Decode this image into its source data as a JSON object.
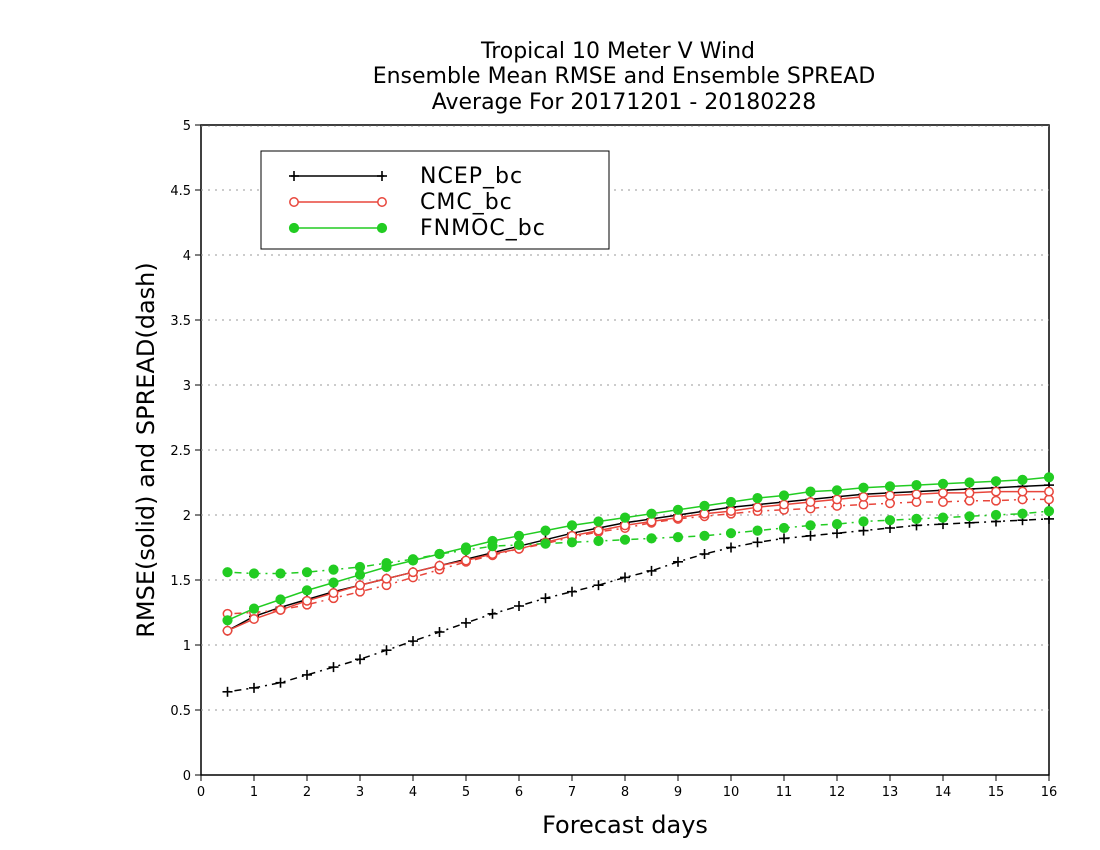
{
  "chart_data": {
    "type": "line",
    "title_lines": [
      "Tropical 10 Meter V Wind",
      "Ensemble Mean RMSE and Ensemble SPREAD",
      "Average For 20171201 - 20180228"
    ],
    "xlabel": "Forecast days",
    "ylabel": "RMSE(solid) and SPREAD(dash)",
    "xlim": [
      0,
      16
    ],
    "ylim": [
      0,
      5
    ],
    "x_ticks": [
      "0",
      "1",
      "2",
      "3",
      "4",
      "5",
      "6",
      "7",
      "8",
      "9",
      "10",
      "11",
      "12",
      "13",
      "14",
      "15",
      "16"
    ],
    "y_ticks": [
      "0",
      "0.5",
      "1",
      "1.5",
      "2",
      "2.5",
      "3",
      "3.5",
      "4",
      "4.5",
      "5"
    ],
    "grid": "horizontal dotted",
    "legend_position": "top-left",
    "x": [
      0.5,
      1,
      1.5,
      2,
      2.5,
      3,
      3.5,
      4,
      4.5,
      5,
      5.5,
      6,
      6.5,
      7,
      7.5,
      8,
      8.5,
      9,
      9.5,
      10,
      10.5,
      11,
      11.5,
      12,
      12.5,
      13,
      13.5,
      14,
      14.5,
      15,
      15.5,
      16
    ],
    "series": [
      {
        "name": "NCEP_bc",
        "color": "#000000",
        "marker": "plus",
        "rmse": [
          1.11,
          1.22,
          1.29,
          1.35,
          1.41,
          1.46,
          1.51,
          1.56,
          1.61,
          1.66,
          1.71,
          1.76,
          1.81,
          1.86,
          1.9,
          1.94,
          1.97,
          2.0,
          2.03,
          2.06,
          2.08,
          2.1,
          2.12,
          2.14,
          2.16,
          2.17,
          2.18,
          2.19,
          2.2,
          2.21,
          2.22,
          2.23
        ],
        "spread": [
          0.64,
          0.67,
          0.71,
          0.77,
          0.83,
          0.89,
          0.96,
          1.03,
          1.1,
          1.17,
          1.24,
          1.3,
          1.36,
          1.41,
          1.46,
          1.52,
          1.57,
          1.64,
          1.7,
          1.75,
          1.79,
          1.82,
          1.84,
          1.86,
          1.88,
          1.9,
          1.92,
          1.93,
          1.94,
          1.95,
          1.96,
          1.97
        ]
      },
      {
        "name": "CMC_bc",
        "color": "#e8463c",
        "marker": "open-circle",
        "rmse": [
          1.11,
          1.2,
          1.27,
          1.34,
          1.4,
          1.46,
          1.51,
          1.56,
          1.61,
          1.65,
          1.7,
          1.74,
          1.79,
          1.84,
          1.88,
          1.92,
          1.95,
          1.98,
          2.01,
          2.03,
          2.06,
          2.08,
          2.1,
          2.12,
          2.14,
          2.15,
          2.16,
          2.17,
          2.17,
          2.18,
          2.18,
          2.18
        ],
        "spread": [
          1.24,
          1.25,
          1.27,
          1.31,
          1.36,
          1.41,
          1.46,
          1.52,
          1.58,
          1.64,
          1.69,
          1.74,
          1.78,
          1.83,
          1.87,
          1.9,
          1.94,
          1.97,
          1.99,
          2.01,
          2.03,
          2.04,
          2.05,
          2.07,
          2.08,
          2.09,
          2.1,
          2.1,
          2.11,
          2.11,
          2.12,
          2.12
        ]
      },
      {
        "name": "FNMOC_bc",
        "color": "#22cc22",
        "marker": "filled-circle",
        "rmse": [
          1.19,
          1.28,
          1.35,
          1.42,
          1.48,
          1.54,
          1.6,
          1.65,
          1.7,
          1.75,
          1.8,
          1.84,
          1.88,
          1.92,
          1.95,
          1.98,
          2.01,
          2.04,
          2.07,
          2.1,
          2.13,
          2.15,
          2.18,
          2.19,
          2.21,
          2.22,
          2.23,
          2.24,
          2.25,
          2.26,
          2.27,
          2.29
        ],
        "spread": [
          1.56,
          1.55,
          1.55,
          1.56,
          1.58,
          1.6,
          1.63,
          1.66,
          1.7,
          1.73,
          1.76,
          1.77,
          1.78,
          1.79,
          1.8,
          1.81,
          1.82,
          1.83,
          1.84,
          1.86,
          1.88,
          1.9,
          1.92,
          1.93,
          1.95,
          1.96,
          1.97,
          1.98,
          1.99,
          2.0,
          2.01,
          2.03
        ]
      }
    ]
  }
}
